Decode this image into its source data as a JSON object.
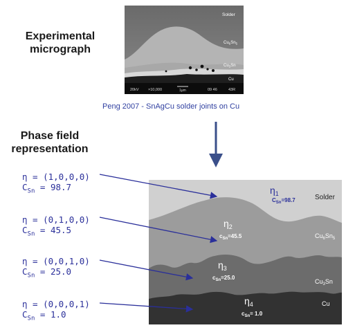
{
  "headings": {
    "micrograph": [
      "Experimental",
      "micrograph"
    ],
    "phasefield": [
      "Phase field",
      "representation"
    ]
  },
  "caption": "Peng 2007 -  SnAgCu solder joints  on Cu",
  "micrograph": {
    "labels": {
      "solder": "Solder",
      "cu6sn5_main": "Cu",
      "cu6sn5_sub1": "6",
      "cu6sn5_tail": "Sn",
      "cu6sn5_sub2": "5",
      "cu3sn_main": "Cu",
      "cu3sn_sub": "3",
      "cu3sn_tail": "Sn",
      "cu": "Cu"
    },
    "scalebar": {
      "voltage": "20kV",
      "magnification": "×10,000",
      "scale": "1μm",
      "code1": "09 46",
      "code2": "43R"
    }
  },
  "phases": [
    {
      "eta": "η = (1,0,0,0)",
      "c_label": "C",
      "c_sub": "Sn",
      "c_value": " = 98.7"
    },
    {
      "eta": "η = (0,1,0,0)",
      "c_label": "C",
      "c_sub": "Sn",
      "c_value": " = 45.5"
    },
    {
      "eta": "η = (0,0,1,0)",
      "c_label": "C",
      "c_sub": "Sn",
      "c_value": " = 25.0"
    },
    {
      "eta": "η = (0,0,0,1)",
      "c_label": "C",
      "c_sub": "Sn",
      "c_value": " =  1.0"
    }
  ],
  "field": {
    "eta1": {
      "sym": "η",
      "sub": "1",
      "c": "C",
      "csub": "Sn",
      "val": "=98.7"
    },
    "eta2": {
      "sym": "η",
      "sub": "2",
      "c": "c",
      "csub": "Sn",
      "val": "=45.5"
    },
    "eta3": {
      "sym": "η",
      "sub": "3",
      "c": "c",
      "csub": "Sn",
      "val": "=25.0"
    },
    "eta4": {
      "sym": "η",
      "sub": "4",
      "c": "c",
      "csub": "Sn",
      "val": "= 1.0"
    },
    "labels": {
      "solder": "Solder",
      "cu6sn5_a": "Cu",
      "cu6sn5_b": "6",
      "cu6sn5_c": "Sn",
      "cu6sn5_d": "5",
      "cu3sn_a": "Cu",
      "cu3sn_b": "3",
      "cu3sn_c": "Sn",
      "cu": "Cu"
    }
  },
  "colors": {
    "arrow": "#2a2f9a",
    "down_arrow": "#3a4f8a",
    "solder": "#d0d0d0",
    "cu6sn5": "#9c9c9c",
    "cu3sn": "#6c6c6c",
    "cu": "#323232"
  }
}
